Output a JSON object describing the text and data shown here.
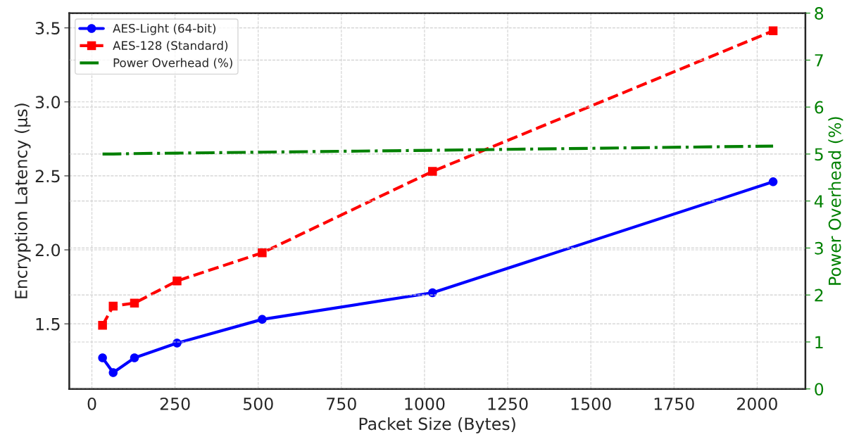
{
  "chart_data": {
    "type": "line",
    "xlabel": "Packet Size (Bytes)",
    "ylabel": "Encryption Latency (μs)",
    "y2label": "Power Overhead (%)",
    "x": [
      32,
      64,
      128,
      256,
      512,
      1024,
      2048
    ],
    "series": [
      {
        "name": "AES-Light (64-bit)",
        "color": "#0000ff",
        "marker": "circle",
        "line_style": "solid",
        "values": [
          1.27,
          1.17,
          1.27,
          1.37,
          1.53,
          1.71,
          2.46
        ]
      },
      {
        "name": "AES-128 (Standard)",
        "color": "#ff0000",
        "marker": "square",
        "line_style": "dashed",
        "values": [
          1.49,
          1.62,
          1.64,
          1.79,
          1.98,
          2.53,
          3.48
        ]
      },
      {
        "name": "Power Overhead (%)",
        "color": "#008000",
        "marker": "none",
        "line_style": "dashdot",
        "axis": "y2",
        "values": [
          5.0,
          5.0,
          5.01,
          5.02,
          5.04,
          5.08,
          5.17
        ]
      }
    ],
    "xlim": [
      -68,
      2145
    ],
    "xticks": [
      0,
      250,
      500,
      750,
      1000,
      1250,
      1500,
      1750,
      2000
    ],
    "ylim": [
      1.06,
      3.6
    ],
    "yticks": [
      1.5,
      {
        "value": 2,
        "label": "2.0"
      },
      2.5,
      {
        "value": 3,
        "label": "3.0"
      },
      3.5
    ],
    "y2lim": [
      0,
      8
    ],
    "y2ticks": [
      0,
      1,
      2,
      3,
      4,
      5,
      6,
      7,
      8
    ],
    "grid": true,
    "legend": "top left"
  }
}
